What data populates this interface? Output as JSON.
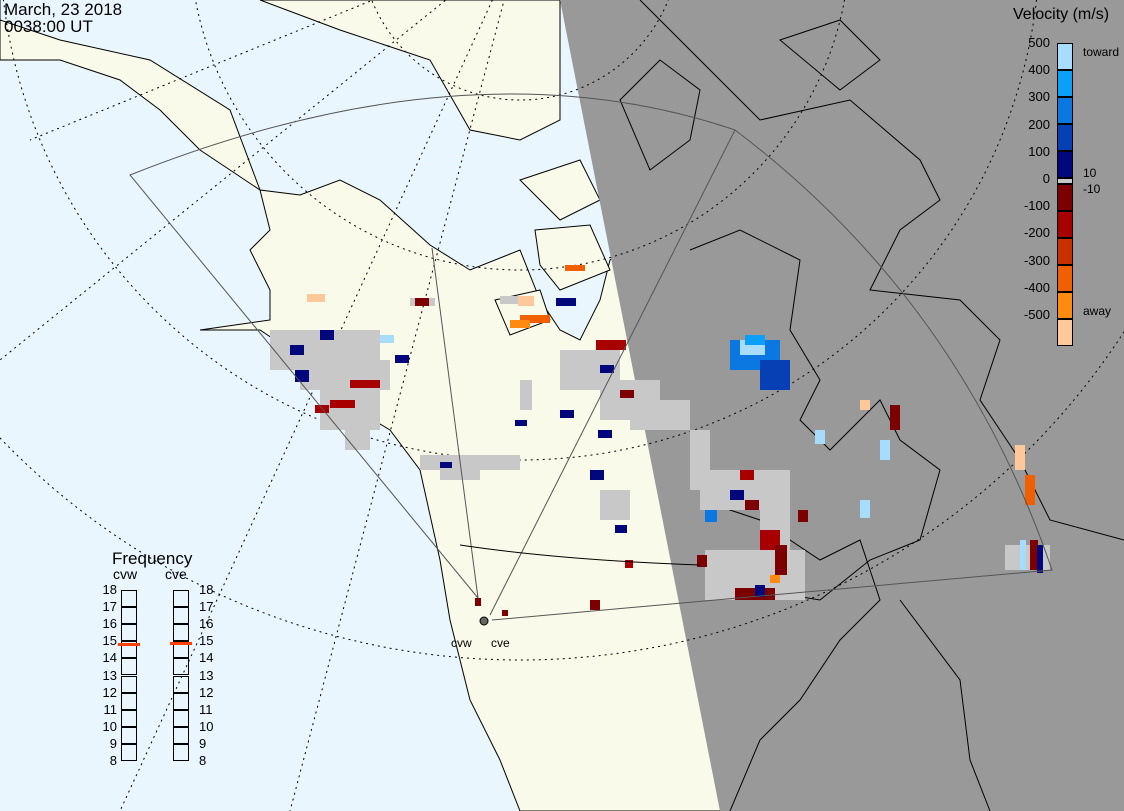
{
  "header": {
    "date": "March, 23 2018",
    "time": "0038:00 UT"
  },
  "colorbar": {
    "title": "Velocity (m/s)",
    "ticks": [
      "500",
      "400",
      "300",
      "200",
      "100",
      "0",
      "-100",
      "-200",
      "-300",
      "-400",
      "-500"
    ],
    "near_zero_labels": [
      "10",
      "-10"
    ],
    "toward_label": "toward",
    "away_label": "away",
    "colors": [
      "#a8dcfc",
      "#0aa0fa",
      "#0a78e0",
      "#0640b4",
      "#02087c",
      "#7c0000",
      "#a80000",
      "#c83000",
      "#f06000",
      "#ff8a10",
      "#ffc89a"
    ],
    "ground_scatter_color": "#c8c8c8"
  },
  "frequency": {
    "title": "Frequency",
    "ticks": [
      "18",
      "17",
      "16",
      "15",
      "14",
      "13",
      "12",
      "11",
      "10",
      "9",
      "8"
    ],
    "radars": [
      {
        "name": "cvw",
        "value_mhz": 14.8
      },
      {
        "name": "cve",
        "value_mhz": 14.9
      }
    ],
    "marker_color": "#ff4000"
  },
  "radars": [
    {
      "name": "cvw"
    },
    {
      "name": "cve"
    }
  ],
  "map": {
    "ocean_color": "#eaf6fe",
    "land_color": "#fafaea",
    "night_color": "#999999"
  }
}
